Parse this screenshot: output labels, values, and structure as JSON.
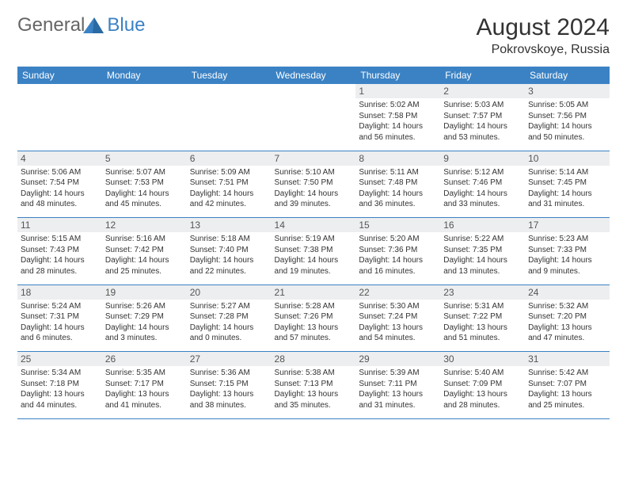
{
  "logo": {
    "text_general": "General",
    "text_blue": "Blue",
    "color": "#3b82c4"
  },
  "title": "August 2024",
  "location": "Pokrovskoye, Russia",
  "header_bg": "#3b82c4",
  "day_headers": [
    "Sunday",
    "Monday",
    "Tuesday",
    "Wednesday",
    "Thursday",
    "Friday",
    "Saturday"
  ],
  "weeks": [
    {
      "nums": [
        "",
        "",
        "",
        "",
        "1",
        "2",
        "3"
      ],
      "cells": [
        {
          "blank": true
        },
        {
          "blank": true
        },
        {
          "blank": true
        },
        {
          "blank": true
        },
        {
          "sunrise": "Sunrise: 5:02 AM",
          "sunset": "Sunset: 7:58 PM",
          "daylight": "Daylight: 14 hours and 56 minutes."
        },
        {
          "sunrise": "Sunrise: 5:03 AM",
          "sunset": "Sunset: 7:57 PM",
          "daylight": "Daylight: 14 hours and 53 minutes."
        },
        {
          "sunrise": "Sunrise: 5:05 AM",
          "sunset": "Sunset: 7:56 PM",
          "daylight": "Daylight: 14 hours and 50 minutes."
        }
      ]
    },
    {
      "nums": [
        "4",
        "5",
        "6",
        "7",
        "8",
        "9",
        "10"
      ],
      "cells": [
        {
          "sunrise": "Sunrise: 5:06 AM",
          "sunset": "Sunset: 7:54 PM",
          "daylight": "Daylight: 14 hours and 48 minutes."
        },
        {
          "sunrise": "Sunrise: 5:07 AM",
          "sunset": "Sunset: 7:53 PM",
          "daylight": "Daylight: 14 hours and 45 minutes."
        },
        {
          "sunrise": "Sunrise: 5:09 AM",
          "sunset": "Sunset: 7:51 PM",
          "daylight": "Daylight: 14 hours and 42 minutes."
        },
        {
          "sunrise": "Sunrise: 5:10 AM",
          "sunset": "Sunset: 7:50 PM",
          "daylight": "Daylight: 14 hours and 39 minutes."
        },
        {
          "sunrise": "Sunrise: 5:11 AM",
          "sunset": "Sunset: 7:48 PM",
          "daylight": "Daylight: 14 hours and 36 minutes."
        },
        {
          "sunrise": "Sunrise: 5:12 AM",
          "sunset": "Sunset: 7:46 PM",
          "daylight": "Daylight: 14 hours and 33 minutes."
        },
        {
          "sunrise": "Sunrise: 5:14 AM",
          "sunset": "Sunset: 7:45 PM",
          "daylight": "Daylight: 14 hours and 31 minutes."
        }
      ]
    },
    {
      "nums": [
        "11",
        "12",
        "13",
        "14",
        "15",
        "16",
        "17"
      ],
      "cells": [
        {
          "sunrise": "Sunrise: 5:15 AM",
          "sunset": "Sunset: 7:43 PM",
          "daylight": "Daylight: 14 hours and 28 minutes."
        },
        {
          "sunrise": "Sunrise: 5:16 AM",
          "sunset": "Sunset: 7:42 PM",
          "daylight": "Daylight: 14 hours and 25 minutes."
        },
        {
          "sunrise": "Sunrise: 5:18 AM",
          "sunset": "Sunset: 7:40 PM",
          "daylight": "Daylight: 14 hours and 22 minutes."
        },
        {
          "sunrise": "Sunrise: 5:19 AM",
          "sunset": "Sunset: 7:38 PM",
          "daylight": "Daylight: 14 hours and 19 minutes."
        },
        {
          "sunrise": "Sunrise: 5:20 AM",
          "sunset": "Sunset: 7:36 PM",
          "daylight": "Daylight: 14 hours and 16 minutes."
        },
        {
          "sunrise": "Sunrise: 5:22 AM",
          "sunset": "Sunset: 7:35 PM",
          "daylight": "Daylight: 14 hours and 13 minutes."
        },
        {
          "sunrise": "Sunrise: 5:23 AM",
          "sunset": "Sunset: 7:33 PM",
          "daylight": "Daylight: 14 hours and 9 minutes."
        }
      ]
    },
    {
      "nums": [
        "18",
        "19",
        "20",
        "21",
        "22",
        "23",
        "24"
      ],
      "cells": [
        {
          "sunrise": "Sunrise: 5:24 AM",
          "sunset": "Sunset: 7:31 PM",
          "daylight": "Daylight: 14 hours and 6 minutes."
        },
        {
          "sunrise": "Sunrise: 5:26 AM",
          "sunset": "Sunset: 7:29 PM",
          "daylight": "Daylight: 14 hours and 3 minutes."
        },
        {
          "sunrise": "Sunrise: 5:27 AM",
          "sunset": "Sunset: 7:28 PM",
          "daylight": "Daylight: 14 hours and 0 minutes."
        },
        {
          "sunrise": "Sunrise: 5:28 AM",
          "sunset": "Sunset: 7:26 PM",
          "daylight": "Daylight: 13 hours and 57 minutes."
        },
        {
          "sunrise": "Sunrise: 5:30 AM",
          "sunset": "Sunset: 7:24 PM",
          "daylight": "Daylight: 13 hours and 54 minutes."
        },
        {
          "sunrise": "Sunrise: 5:31 AM",
          "sunset": "Sunset: 7:22 PM",
          "daylight": "Daylight: 13 hours and 51 minutes."
        },
        {
          "sunrise": "Sunrise: 5:32 AM",
          "sunset": "Sunset: 7:20 PM",
          "daylight": "Daylight: 13 hours and 47 minutes."
        }
      ]
    },
    {
      "nums": [
        "25",
        "26",
        "27",
        "28",
        "29",
        "30",
        "31"
      ],
      "cells": [
        {
          "sunrise": "Sunrise: 5:34 AM",
          "sunset": "Sunset: 7:18 PM",
          "daylight": "Daylight: 13 hours and 44 minutes."
        },
        {
          "sunrise": "Sunrise: 5:35 AM",
          "sunset": "Sunset: 7:17 PM",
          "daylight": "Daylight: 13 hours and 41 minutes."
        },
        {
          "sunrise": "Sunrise: 5:36 AM",
          "sunset": "Sunset: 7:15 PM",
          "daylight": "Daylight: 13 hours and 38 minutes."
        },
        {
          "sunrise": "Sunrise: 5:38 AM",
          "sunset": "Sunset: 7:13 PM",
          "daylight": "Daylight: 13 hours and 35 minutes."
        },
        {
          "sunrise": "Sunrise: 5:39 AM",
          "sunset": "Sunset: 7:11 PM",
          "daylight": "Daylight: 13 hours and 31 minutes."
        },
        {
          "sunrise": "Sunrise: 5:40 AM",
          "sunset": "Sunset: 7:09 PM",
          "daylight": "Daylight: 13 hours and 28 minutes."
        },
        {
          "sunrise": "Sunrise: 5:42 AM",
          "sunset": "Sunset: 7:07 PM",
          "daylight": "Daylight: 13 hours and 25 minutes."
        }
      ]
    }
  ]
}
